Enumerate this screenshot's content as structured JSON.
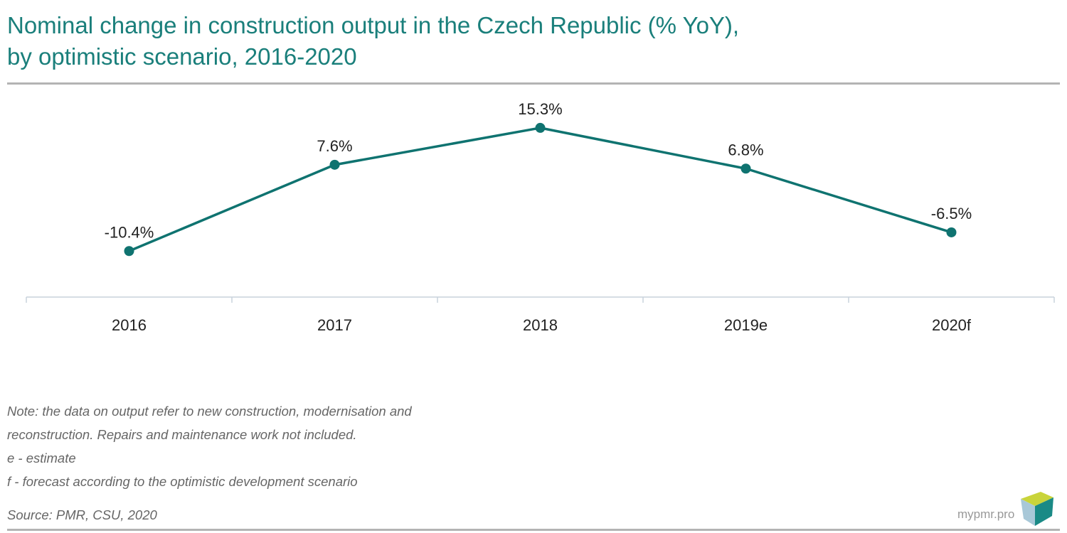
{
  "header": {
    "title_line1": "Nominal change in construction output in the Czech Republic (% YoY),",
    "title_line2": "by optimistic scenario, 2016-2020"
  },
  "chart_data": {
    "type": "line",
    "title": "Nominal change in construction output in the Czech Republic (% YoY), by optimistic scenario, 2016-2020",
    "categories": [
      "2016",
      "2017",
      "2018",
      "2019e",
      "2020f"
    ],
    "series": [
      {
        "values": [
          -10.4,
          7.6,
          15.3,
          6.8,
          -6.5
        ],
        "labels": [
          "-10.4%",
          "7.6%",
          "15.3%",
          "6.8%",
          "-6.5%"
        ],
        "color": "#0f7370"
      }
    ],
    "ylim": [
      -20,
      23
    ],
    "xlabel": "",
    "ylabel": "",
    "grid": false,
    "y_axis_visible": false
  },
  "footer": {
    "notes": [
      "Note: the data on output refer to new construction, modernisation and",
      "reconstruction. Repairs and maintenance work not included.",
      "e - estimate",
      "f - forecast according to the optimistic development scenario"
    ],
    "source": "Source: PMR, CSU, 2020",
    "brand": "mypmr.pro"
  }
}
